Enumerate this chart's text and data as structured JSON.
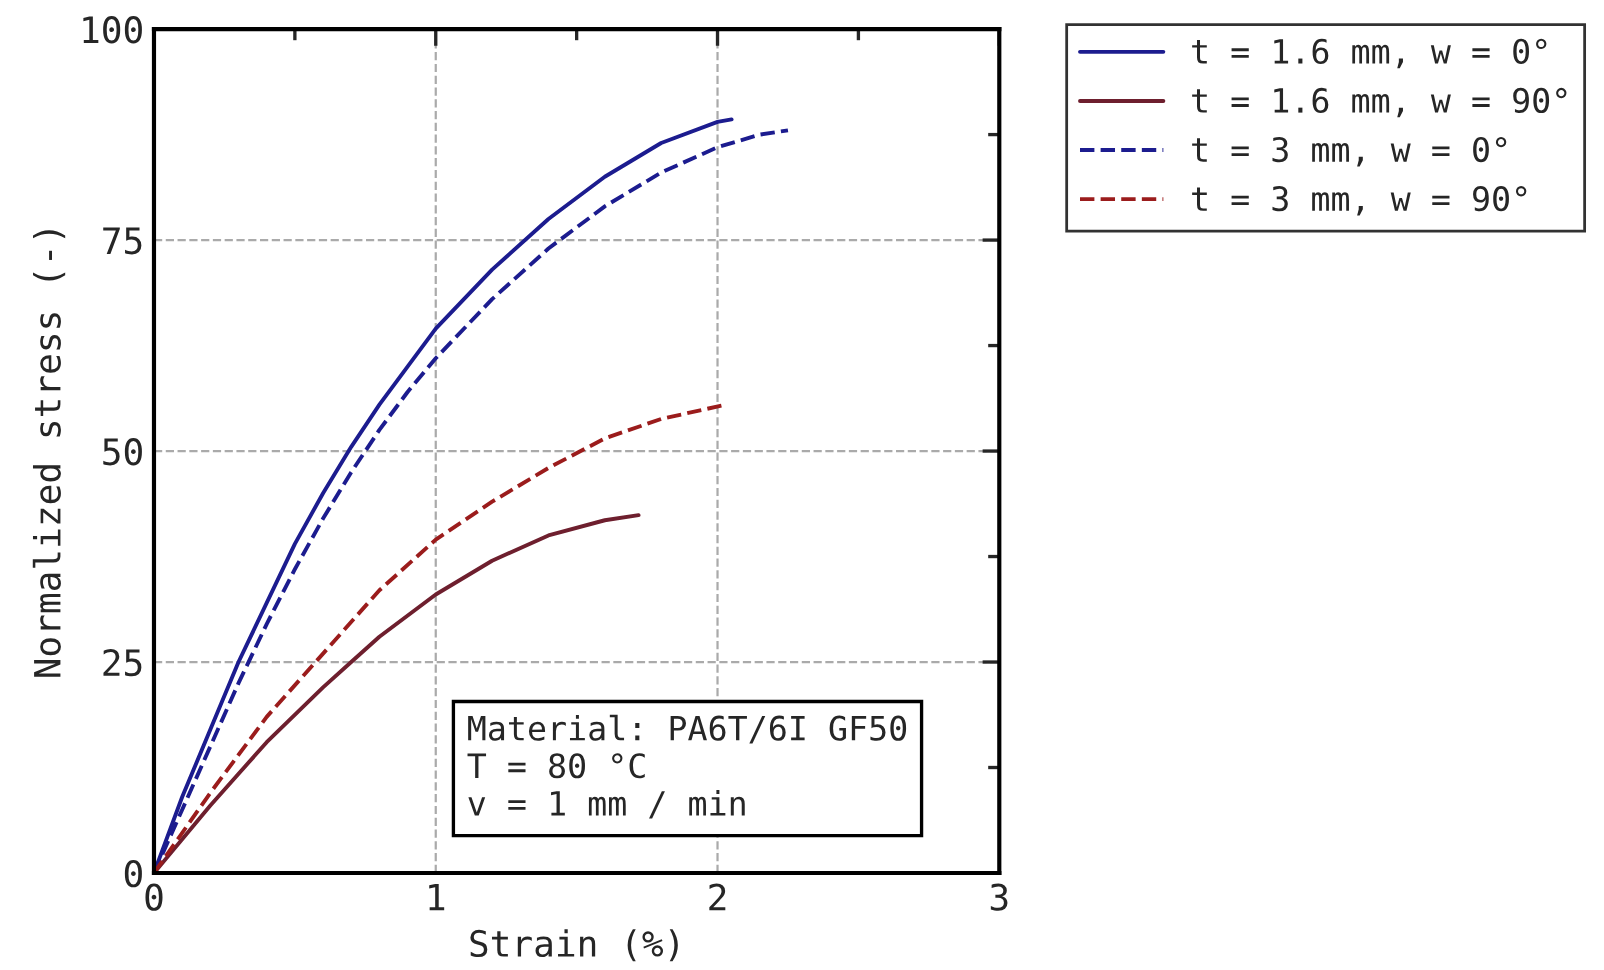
{
  "chart_data": {
    "type": "line",
    "xlabel": "Strain (%)",
    "ylabel": "Normalized stress (-)",
    "xlim": [
      0,
      3
    ],
    "xticks": [
      0,
      1,
      2,
      3
    ],
    "ylim": [
      0,
      100
    ],
    "yticks": [
      0,
      25,
      50,
      75,
      100
    ],
    "grid": true,
    "legend": "top right",
    "marker": "none",
    "annotations": [
      "Material: PA6T/6I GF50\nT = 80 °C\nv = 1 mm / min"
    ],
    "series": [
      {
        "name": "t = 1.6 mm, w = 0°",
        "color": "#1c1c8f",
        "line_style": "solid",
        "x": [
          0,
          0.1,
          0.2,
          0.3,
          0.4,
          0.5,
          0.6,
          0.7,
          0.8,
          0.9,
          1.0,
          1.2,
          1.4,
          1.6,
          1.8,
          2.0,
          2.05
        ],
        "values": [
          0,
          9,
          17,
          25,
          32,
          39,
          45,
          50.5,
          55.5,
          60,
          64.5,
          71.5,
          77.5,
          82.5,
          86.5,
          89,
          89.3
        ]
      },
      {
        "name": "t = 1.6 mm, w = 90°",
        "color": "#6e1f2e",
        "line_style": "solid",
        "x": [
          0,
          0.2,
          0.4,
          0.6,
          0.7,
          0.8,
          1.0,
          1.2,
          1.4,
          1.6,
          1.72
        ],
        "values": [
          0,
          8,
          15.5,
          22,
          25,
          28,
          33,
          37,
          40,
          41.8,
          42.4
        ]
      },
      {
        "name": "t = 3 mm, w = 0°",
        "color": "#1c1c8f",
        "line_style": "dashed",
        "x": [
          0,
          0.1,
          0.2,
          0.3,
          0.4,
          0.5,
          0.6,
          0.7,
          0.8,
          0.9,
          1.0,
          1.2,
          1.4,
          1.6,
          1.8,
          2.0,
          2.15,
          2.25
        ],
        "values": [
          0,
          7.5,
          15,
          22.5,
          29.5,
          36,
          42,
          47.5,
          52.5,
          57,
          61,
          68,
          74,
          79,
          83,
          86,
          87.5,
          88
        ]
      },
      {
        "name": "t = 3 mm, w = 90°",
        "color": "#9b1c1c",
        "line_style": "dashed",
        "x": [
          0,
          0.2,
          0.4,
          0.6,
          0.8,
          1.0,
          1.2,
          1.4,
          1.6,
          1.8,
          2.03
        ],
        "values": [
          0,
          9.5,
          18.5,
          26,
          33.5,
          39.5,
          44,
          48,
          51.5,
          53.8,
          55.5
        ]
      }
    ]
  }
}
